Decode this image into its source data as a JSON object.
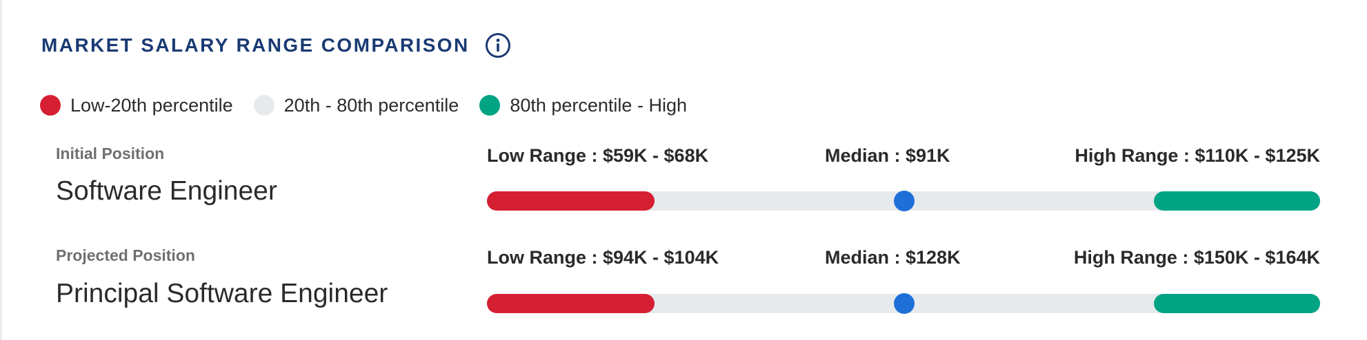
{
  "header": {
    "title": "MARKET SALARY RANGE COMPARISON",
    "info_icon": "info-circle-icon"
  },
  "colors": {
    "low": "#d61f33",
    "mid": "#e7eaed",
    "high": "#00a383",
    "median": "#1f6fd8",
    "title": "#1a3a73"
  },
  "legend": [
    {
      "label": "Low-20th percentile",
      "color": "#d61f33"
    },
    {
      "label": "20th - 80th percentile",
      "color": "#e7eaed"
    },
    {
      "label": "80th percentile - High",
      "color": "#00a383"
    }
  ],
  "positions": [
    {
      "kind": "Initial Position",
      "title": "Software Engineer",
      "low_range": "Low Range : $59K - $68K",
      "median": "Median : $91K",
      "high_range": "High Range : $110K - $125K"
    },
    {
      "kind": "Projected Position",
      "title": "Principal Software Engineer",
      "low_range": "Low Range : $94K - $104K",
      "median": "Median : $128K",
      "high_range": "High Range : $150K - $164K"
    }
  ]
}
